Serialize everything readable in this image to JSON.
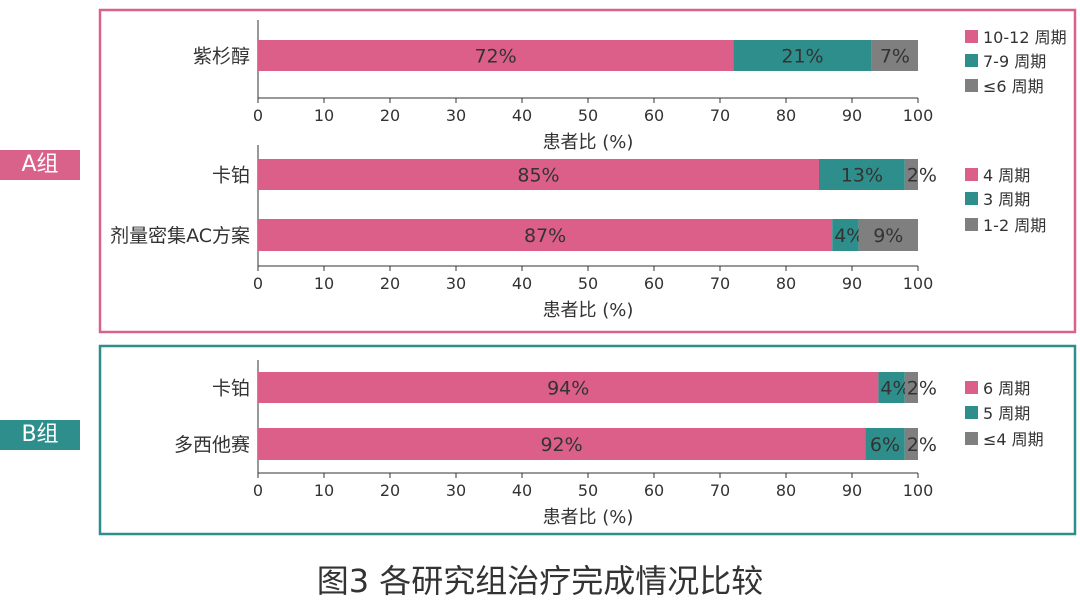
{
  "title": "图3 各研究组治疗完成情况比较",
  "colors": {
    "pink": "#dc5f8a",
    "teal": "#2e8e8c",
    "gray": "#7f7f7f",
    "groupA": "#d9628a",
    "groupB": "#2e8e8c"
  },
  "groups": [
    {
      "label": "A组"
    },
    {
      "label": "B组"
    }
  ],
  "chart_data": [
    {
      "type": "bar",
      "orientation": "horizontal",
      "stacked": true,
      "group": "A组",
      "categories": [
        "紫杉醇"
      ],
      "series": [
        {
          "name": "10-12 周期",
          "values": [
            72
          ],
          "labels": [
            "72%"
          ]
        },
        {
          "name": "7-9 周期",
          "values": [
            21
          ],
          "labels": [
            "21%"
          ]
        },
        {
          "name": "≤6 周期",
          "values": [
            7
          ],
          "labels": [
            "7%"
          ]
        }
      ],
      "xlabel": "患者比 (%)",
      "xlim": [
        0,
        100
      ],
      "xticks": [
        0,
        10,
        20,
        30,
        40,
        50,
        60,
        70,
        80,
        90,
        100
      ],
      "legend": "right",
      "grid": false
    },
    {
      "type": "bar",
      "orientation": "horizontal",
      "stacked": true,
      "group": "A组",
      "categories": [
        "卡铂",
        "剂量密集AC方案"
      ],
      "series": [
        {
          "name": "4 周期",
          "values": [
            85,
            87
          ],
          "labels": [
            "85%",
            "87%"
          ]
        },
        {
          "name": "3 周期",
          "values": [
            13,
            4
          ],
          "labels": [
            "13%",
            "4%"
          ]
        },
        {
          "name": "1-2 周期",
          "values": [
            2,
            9
          ],
          "labels": [
            "2%",
            "9%"
          ]
        }
      ],
      "xlabel": "患者比 (%)",
      "xlim": [
        0,
        100
      ],
      "xticks": [
        0,
        10,
        20,
        30,
        40,
        50,
        60,
        70,
        80,
        90,
        100
      ],
      "legend": "right",
      "grid": false
    },
    {
      "type": "bar",
      "orientation": "horizontal",
      "stacked": true,
      "group": "B组",
      "categories": [
        "卡铂",
        "多西他赛"
      ],
      "series": [
        {
          "name": "6 周期",
          "values": [
            94,
            92
          ],
          "labels": [
            "94%",
            "92%"
          ]
        },
        {
          "name": "5 周期",
          "values": [
            4,
            6
          ],
          "labels": [
            "4%",
            "6%"
          ]
        },
        {
          "name": "≤4 周期",
          "values": [
            2,
            2
          ],
          "labels": [
            "2%",
            "2%"
          ]
        }
      ],
      "xlabel": "患者比 (%)",
      "xlim": [
        0,
        100
      ],
      "xticks": [
        0,
        10,
        20,
        30,
        40,
        50,
        60,
        70,
        80,
        90,
        100
      ],
      "legend": "right",
      "grid": false
    }
  ]
}
